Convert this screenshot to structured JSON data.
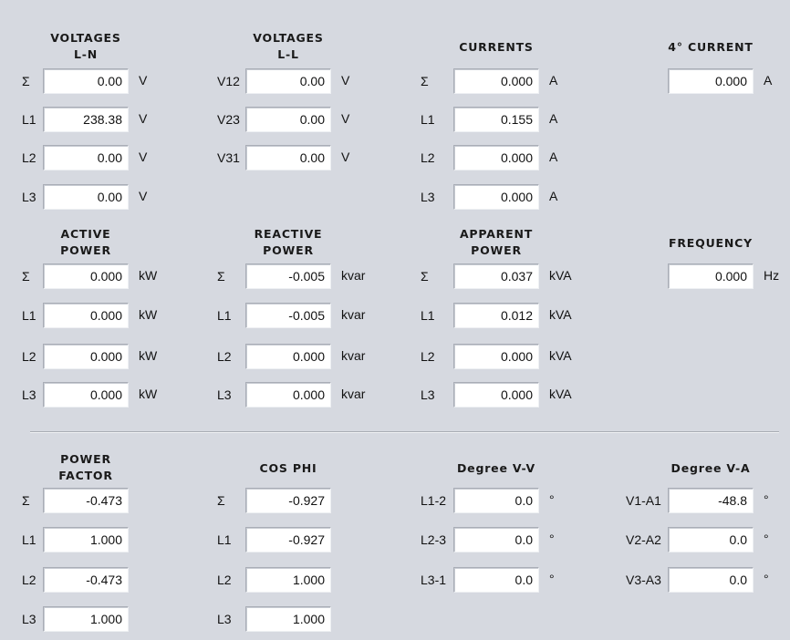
{
  "sections": [
    {
      "title": [
        "VOLTAGES",
        "L-N"
      ],
      "rows": [
        {
          "label": "Σ",
          "value": "0.00",
          "unit": "V"
        },
        {
          "label": "L1",
          "value": "238.38",
          "unit": "V"
        },
        {
          "label": "L2",
          "value": "0.00",
          "unit": "V"
        },
        {
          "label": "L3",
          "value": "0.00",
          "unit": "V"
        }
      ]
    },
    {
      "title": [
        "VOLTAGES",
        "L-L"
      ],
      "rows": [
        {
          "label": "V12",
          "value": "0.00",
          "unit": "V"
        },
        {
          "label": "V23",
          "value": "0.00",
          "unit": "V"
        },
        {
          "label": "V31",
          "value": "0.00",
          "unit": "V"
        }
      ]
    },
    {
      "title": [
        "CURRENTS"
      ],
      "rows": [
        {
          "label": "Σ",
          "value": "0.000",
          "unit": "A"
        },
        {
          "label": "L1",
          "value": "0.155",
          "unit": "A"
        },
        {
          "label": "L2",
          "value": "0.000",
          "unit": "A"
        },
        {
          "label": "L3",
          "value": "0.000",
          "unit": "A"
        }
      ]
    },
    {
      "title": [
        "4° CURRENT"
      ],
      "rows": [
        {
          "label": "",
          "value": "0.000",
          "unit": "A"
        }
      ]
    },
    {
      "title": [
        "ACTIVE",
        "POWER"
      ],
      "rows": [
        {
          "label": "Σ",
          "value": "0.000",
          "unit": "kW"
        },
        {
          "label": "L1",
          "value": "0.000",
          "unit": "kW"
        },
        {
          "label": "L2",
          "value": "0.000",
          "unit": "kW"
        },
        {
          "label": "L3",
          "value": "0.000",
          "unit": "kW"
        }
      ]
    },
    {
      "title": [
        "REACTIVE",
        "POWER"
      ],
      "rows": [
        {
          "label": "Σ",
          "value": "-0.005",
          "unit": "kvar"
        },
        {
          "label": "L1",
          "value": "-0.005",
          "unit": "kvar"
        },
        {
          "label": "L2",
          "value": "0.000",
          "unit": "kvar"
        },
        {
          "label": "L3",
          "value": "0.000",
          "unit": "kvar"
        }
      ]
    },
    {
      "title": [
        "APPARENT",
        "POWER"
      ],
      "rows": [
        {
          "label": "Σ",
          "value": "0.037",
          "unit": "kVA"
        },
        {
          "label": "L1",
          "value": "0.012",
          "unit": "kVA"
        },
        {
          "label": "L2",
          "value": "0.000",
          "unit": "kVA"
        },
        {
          "label": "L3",
          "value": "0.000",
          "unit": "kVA"
        }
      ]
    },
    {
      "title": [
        "FREQUENCY"
      ],
      "rows": [
        {
          "label": "",
          "value": "0.000",
          "unit": "Hz"
        }
      ]
    },
    {
      "title": [
        "POWER",
        "FACTOR"
      ],
      "rows": [
        {
          "label": "Σ",
          "value": "-0.473",
          "unit": ""
        },
        {
          "label": "L1",
          "value": "1.000",
          "unit": ""
        },
        {
          "label": "L2",
          "value": "-0.473",
          "unit": ""
        },
        {
          "label": "L3",
          "value": "1.000",
          "unit": ""
        }
      ]
    },
    {
      "title": [
        "COS PHI"
      ],
      "rows": [
        {
          "label": "Σ",
          "value": "-0.927",
          "unit": ""
        },
        {
          "label": "L1",
          "value": "-0.927",
          "unit": ""
        },
        {
          "label": "L2",
          "value": "1.000",
          "unit": ""
        },
        {
          "label": "L3",
          "value": "1.000",
          "unit": ""
        }
      ]
    },
    {
      "title": [
        "Degree V-V"
      ],
      "rows": [
        {
          "label": "L1-2",
          "value": "0.0",
          "unit": "°"
        },
        {
          "label": "L2-3",
          "value": "0.0",
          "unit": "°"
        },
        {
          "label": "L3-1",
          "value": "0.0",
          "unit": "°"
        }
      ]
    },
    {
      "title": [
        "Degree V-A"
      ],
      "rows": [
        {
          "label": "V1-A1",
          "value": "-48.8",
          "unit": "°"
        },
        {
          "label": "V2-A2",
          "value": "0.0",
          "unit": "°"
        },
        {
          "label": "V3-A3",
          "value": "0.0",
          "unit": "°"
        }
      ]
    }
  ]
}
